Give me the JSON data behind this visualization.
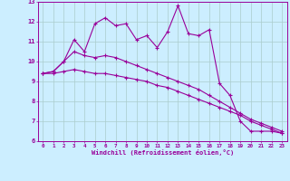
{
  "xlabel": "Windchill (Refroidissement éolien,°C)",
  "x": [
    0,
    1,
    2,
    3,
    4,
    5,
    6,
    7,
    8,
    9,
    10,
    11,
    12,
    13,
    14,
    15,
    16,
    17,
    18,
    19,
    20,
    21,
    22,
    23
  ],
  "line1": [
    9.4,
    9.5,
    10.0,
    11.1,
    10.5,
    11.9,
    12.2,
    11.8,
    11.9,
    11.1,
    11.3,
    10.7,
    11.5,
    12.8,
    11.4,
    11.3,
    11.6,
    8.9,
    8.3,
    7.0,
    6.5,
    6.5,
    6.5,
    6.4
  ],
  "line2": [
    9.4,
    9.5,
    10.0,
    10.5,
    10.3,
    10.2,
    10.3,
    10.2,
    10.0,
    9.8,
    9.6,
    9.4,
    9.2,
    9.0,
    8.8,
    8.6,
    8.3,
    8.0,
    7.7,
    7.4,
    7.1,
    6.9,
    6.7,
    6.5
  ],
  "line3": [
    9.4,
    9.4,
    9.5,
    9.6,
    9.5,
    9.4,
    9.4,
    9.3,
    9.2,
    9.1,
    9.0,
    8.8,
    8.7,
    8.5,
    8.3,
    8.1,
    7.9,
    7.7,
    7.5,
    7.3,
    7.0,
    6.8,
    6.6,
    6.4
  ],
  "line_color": "#990099",
  "bg_color": "#cceeff",
  "grid_color": "#aacccc",
  "ylim": [
    6,
    13
  ],
  "xlim": [
    -0.5,
    23.5
  ]
}
